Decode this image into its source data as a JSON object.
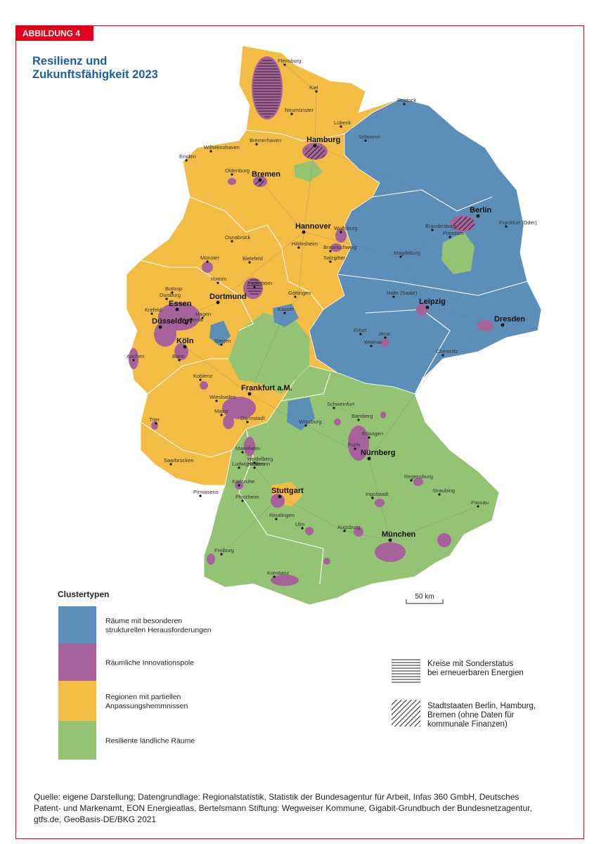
{
  "badge": "ABBILDUNG 4",
  "title_lines": [
    "Resilienz und",
    "Zukunftsfähigkeit 2023"
  ],
  "cities": [
    {
      "label": "Flensburg",
      "major": false
    },
    {
      "label": "Kiel",
      "major": false
    },
    {
      "label": "Neumünster",
      "major": false
    },
    {
      "label": "Lübeck",
      "major": false
    },
    {
      "label": "Rostock",
      "major": false
    },
    {
      "label": "Schwerin",
      "major": false
    },
    {
      "label": "Bremerhaven",
      "major": false
    },
    {
      "label": "Wilhelmshaven",
      "major": false
    },
    {
      "label": "Emden",
      "major": false
    },
    {
      "label": "Oldenburg",
      "major": false
    },
    {
      "label": "Hamburg",
      "major": true
    },
    {
      "label": "Bremen",
      "major": true
    },
    {
      "label": "Berlin",
      "major": true
    },
    {
      "label": "Brandenburg",
      "major": false
    },
    {
      "label": "Potsdam",
      "major": false
    },
    {
      "label": "Frankfurt (Oder)",
      "major": false
    },
    {
      "label": "Hannover",
      "major": true
    },
    {
      "label": "Wolfsburg",
      "major": false
    },
    {
      "label": "Braunschweig",
      "major": false
    },
    {
      "label": "Hildesheim",
      "major": false
    },
    {
      "label": "Salzgitter",
      "major": false
    },
    {
      "label": "Magdeburg",
      "major": false
    },
    {
      "label": "Osnabrück",
      "major": false
    },
    {
      "label": "Bielefeld",
      "major": false
    },
    {
      "label": "Münster",
      "major": false
    },
    {
      "label": "Hamm",
      "major": false
    },
    {
      "label": "Paderborn",
      "major": false
    },
    {
      "label": "Halle (Saale)",
      "major": false
    },
    {
      "label": "Leipzig",
      "major": true
    },
    {
      "label": "Dresden",
      "major": true
    },
    {
      "label": "Göttingen",
      "major": false
    },
    {
      "label": "Kassel",
      "major": false
    },
    {
      "label": "Bottrop",
      "major": false
    },
    {
      "label": "Duisburg",
      "major": false
    },
    {
      "label": "Essen",
      "major": true
    },
    {
      "label": "Dortmund",
      "major": true
    },
    {
      "label": "Krefeld",
      "major": false
    },
    {
      "label": "Hagen",
      "major": false
    },
    {
      "label": "Wuppertal",
      "major": false
    },
    {
      "label": "Düsseldorf",
      "major": true
    },
    {
      "label": "Köln",
      "major": true
    },
    {
      "label": "Siegen",
      "major": false
    },
    {
      "label": "Aachen",
      "major": false
    },
    {
      "label": "Bonn",
      "major": false
    },
    {
      "label": "Erfurt",
      "major": false
    },
    {
      "label": "Weimar",
      "major": false
    },
    {
      "label": "Jena",
      "major": false
    },
    {
      "label": "Chemnitz",
      "major": false
    },
    {
      "label": "Koblenz",
      "major": false
    },
    {
      "label": "Frankfurt a.M.",
      "major": true
    },
    {
      "label": "Wiesbaden",
      "major": false
    },
    {
      "label": "Mainz",
      "major": false
    },
    {
      "label": "Darmstadt",
      "major": false
    },
    {
      "label": "Schweinfurt",
      "major": false
    },
    {
      "label": "Würzburg",
      "major": false
    },
    {
      "label": "Bamberg",
      "major": false
    },
    {
      "label": "Trier",
      "major": false
    },
    {
      "label": "Mannheim",
      "major": false
    },
    {
      "label": "Heidelberg",
      "major": false
    },
    {
      "label": "Saarbrücken",
      "major": false
    },
    {
      "label": "Ludwigshafen",
      "major": false
    },
    {
      "label": "Erlangen",
      "major": false
    },
    {
      "label": "Fürth",
      "major": false
    },
    {
      "label": "Nürnberg",
      "major": true
    },
    {
      "label": "Pirmasens",
      "major": false
    },
    {
      "label": "Heilbronn",
      "major": false
    },
    {
      "label": "Karlsruhe",
      "major": false
    },
    {
      "label": "Regensburg",
      "major": false
    },
    {
      "label": "Straubing",
      "major": false
    },
    {
      "label": "Pforzheim",
      "major": false
    },
    {
      "label": "Stuttgart",
      "major": true
    },
    {
      "label": "Ingolstadt",
      "major": false
    },
    {
      "label": "Passau",
      "major": false
    },
    {
      "label": "Reutlingen",
      "major": false
    },
    {
      "label": "Ulm",
      "major": false
    },
    {
      "label": "Augsburg",
      "major": false
    },
    {
      "label": "München",
      "major": true
    },
    {
      "label": "Freiburg",
      "major": false
    },
    {
      "label": "Konstanz",
      "major": false
    }
  ],
  "scale_bar": "50 km",
  "legend": {
    "title": "Clustertypen",
    "items": [
      {
        "lines": [
          "Räume mit besonderen",
          "strukturellen Herausforderungen"
        ],
        "color": "#5b8fb9"
      },
      {
        "lines": [
          "Räumliche Innovationspole"
        ],
        "color": "#a8629b"
      },
      {
        "lines": [
          "Regionen mit partiellen",
          "Anpassungshemmnissen"
        ],
        "color": "#f3bd45"
      },
      {
        "lines": [
          "Resiliente ländliche Räume"
        ],
        "color": "#95c374"
      }
    ]
  },
  "pattern_legend": [
    {
      "lines": [
        "Kreise mit Sonderstatus",
        "bei erneuerbaren Energien"
      ],
      "pattern": "horizontal"
    },
    {
      "lines": [
        "Stadtstaaten Berlin, Hamburg,",
        "Bremen (ohne Daten für",
        "kommunale Finanzen)"
      ],
      "pattern": "diagonal"
    }
  ],
  "source_lines": [
    "Quelle: eigene Darstellung; Datengrundlage: Regionalstatistik, Statistik der Bundesagentur für Arbeit, Infas 360 GmbH, Deutsches",
    "Patent- und Markenamt, EON Energieatlas, Bertelsmann Stiftung: Wegweiser Kommune, Gigabit-Grundbuch der Bundesnetzagentur,",
    "gtfs.de, GeoBasis-DE/BKG 2021"
  ]
}
